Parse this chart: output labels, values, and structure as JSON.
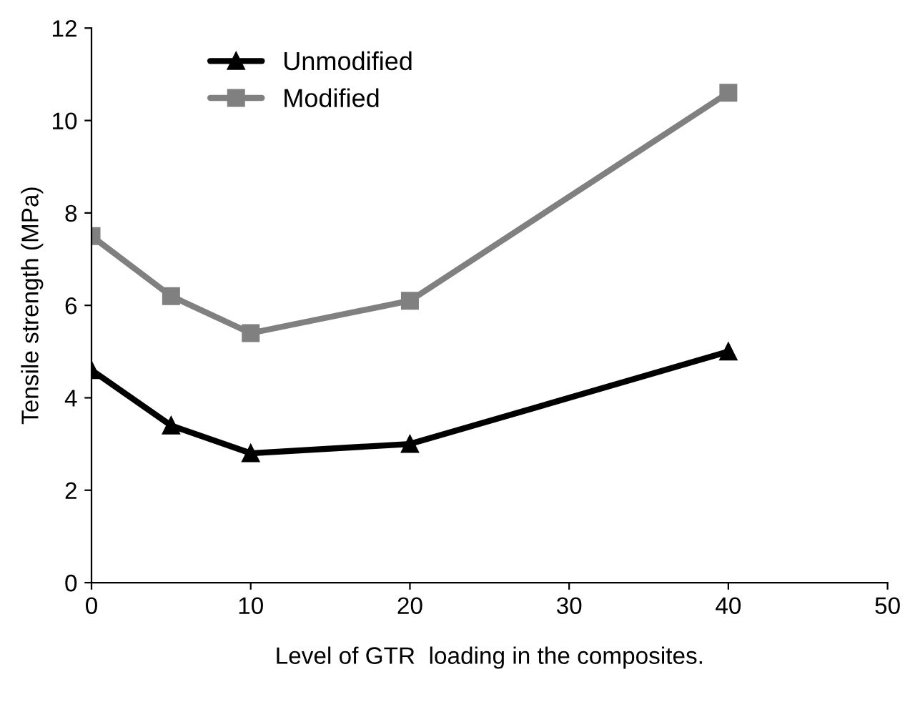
{
  "chart_data": {
    "type": "line",
    "xlabel": "Level of GTR  loading in the composites.",
    "ylabel": "Tensile strength (MPa)",
    "x": [
      0,
      5,
      10,
      20,
      40
    ],
    "series": [
      {
        "name": "Unmodified",
        "color": "#000000",
        "marker": "triangle",
        "values": [
          4.6,
          3.4,
          2.8,
          3.0,
          5.0
        ]
      },
      {
        "name": "Modified",
        "color": "#808080",
        "marker": "square",
        "values": [
          7.5,
          6.2,
          5.4,
          6.1,
          10.6
        ]
      }
    ],
    "xlim": [
      0,
      50
    ],
    "xticks": [
      0,
      10,
      20,
      30,
      40,
      50
    ],
    "ylim": [
      0,
      12
    ],
    "yticks": [
      0,
      2,
      4,
      6,
      8,
      10,
      12
    ],
    "grid": false,
    "legend": "top left",
    "line_style": "solid"
  }
}
